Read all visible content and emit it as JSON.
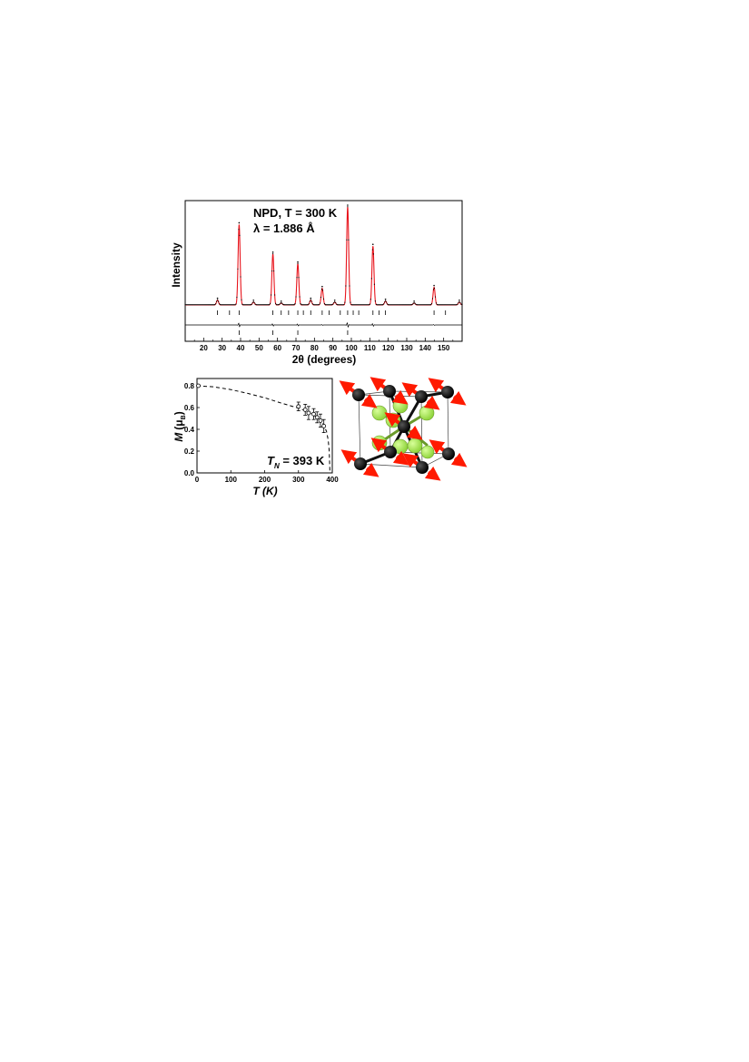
{
  "chart_data": [
    {
      "type": "line",
      "panel": "neutron powder diffraction pattern",
      "annotation_line1": "NPD, T = 300 K",
      "annotation_line2": "λ = 1.886 Å",
      "xlabel": "2θ (degrees)",
      "ylabel": "Intensity",
      "xlim": [
        10,
        160
      ],
      "xticks": [
        20,
        30,
        40,
        50,
        60,
        70,
        80,
        90,
        100,
        110,
        120,
        130,
        140,
        150
      ],
      "colors": {
        "observed": "#000000",
        "calculated": "#e8141c",
        "difference": "#000000"
      },
      "peaks": [
        {
          "x": 27.5,
          "height": 0.05
        },
        {
          "x": 39.2,
          "height": 0.82
        },
        {
          "x": 47.0,
          "height": 0.03
        },
        {
          "x": 57.5,
          "height": 0.52
        },
        {
          "x": 62.0,
          "height": 0.02
        },
        {
          "x": 71.0,
          "height": 0.42
        },
        {
          "x": 78.0,
          "height": 0.05
        },
        {
          "x": 84.2,
          "height": 0.17
        },
        {
          "x": 91.0,
          "height": 0.03
        },
        {
          "x": 98.0,
          "height": 1.0
        },
        {
          "x": 111.7,
          "height": 0.6
        },
        {
          "x": 118.5,
          "height": 0.04
        },
        {
          "x": 134.0,
          "height": 0.02
        },
        {
          "x": 144.8,
          "height": 0.18
        },
        {
          "x": 158.5,
          "height": 0.03
        }
      ],
      "bragg_nuclear": [
        27.5,
        34,
        39.2,
        57.5,
        62,
        66,
        71,
        74,
        78,
        84.2,
        88,
        94,
        98,
        101,
        104,
        111.7,
        115,
        118.5,
        144.8,
        151
      ],
      "bragg_magnetic": [
        39.2,
        57.5,
        71,
        98
      ]
    },
    {
      "type": "scatter",
      "panel": "ordered moment vs temperature",
      "xlabel": "T (K)",
      "ylabel_main": "M",
      "ylabel_unit": "(μ",
      "ylabel_unit_sub": "B",
      "ylabel_unit_close": ")",
      "annotation_main": "T",
      "annotation_sub": "N",
      "annotation_rest": " = 393 K",
      "xlim": [
        0,
        400
      ],
      "ylim": [
        0.0,
        0.8
      ],
      "xticks": [
        0,
        100,
        200,
        300,
        400
      ],
      "yticks": [
        0.0,
        0.2,
        0.4,
        0.6,
        0.8
      ],
      "points": [
        {
          "x": 4,
          "y": 0.8,
          "err": 0.0
        },
        {
          "x": 300,
          "y": 0.61,
          "err": 0.04
        },
        {
          "x": 320,
          "y": 0.58,
          "err": 0.05
        },
        {
          "x": 330,
          "y": 0.55,
          "err": 0.06
        },
        {
          "x": 345,
          "y": 0.54,
          "err": 0.05
        },
        {
          "x": 355,
          "y": 0.51,
          "err": 0.05
        },
        {
          "x": 365,
          "y": 0.48,
          "err": 0.06
        },
        {
          "x": 375,
          "y": 0.43,
          "err": 0.06
        }
      ],
      "fit_curve": [
        [
          0,
          0.8
        ],
        [
          50,
          0.79
        ],
        [
          100,
          0.765
        ],
        [
          150,
          0.73
        ],
        [
          200,
          0.69
        ],
        [
          250,
          0.64
        ],
        [
          300,
          0.595
        ],
        [
          330,
          0.56
        ],
        [
          350,
          0.52
        ],
        [
          365,
          0.48
        ],
        [
          375,
          0.44
        ],
        [
          383,
          0.38
        ],
        [
          388,
          0.3
        ],
        [
          391,
          0.2
        ],
        [
          393,
          0.0
        ]
      ]
    }
  ],
  "structure_diagram": {
    "description_name": "magnetic structure unit cell",
    "colors": {
      "magnetic_atom": "#111111",
      "ligand_atom": "#a6e35a",
      "spin_arrow": "#ff1a00",
      "bond": "#6a9a2a"
    }
  }
}
